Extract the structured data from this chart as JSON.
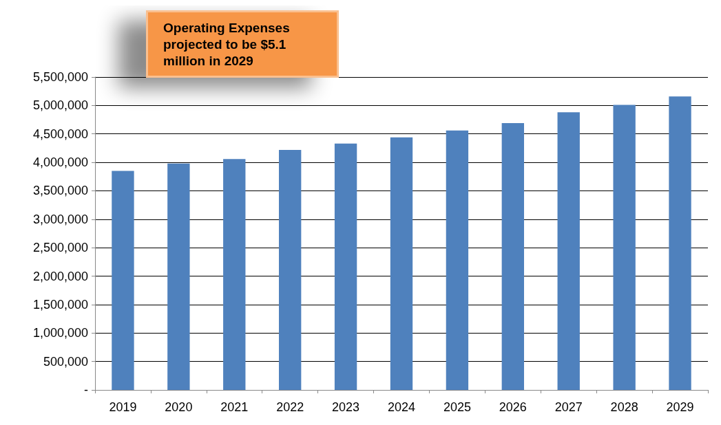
{
  "chart_data": {
    "type": "bar",
    "title": "Operating Expenses projected to be $5.1 million in 2029",
    "categories": [
      "2019",
      "2020",
      "2021",
      "2022",
      "2023",
      "2024",
      "2025",
      "2026",
      "2027",
      "2028",
      "2029"
    ],
    "values": [
      3850000,
      3980000,
      4060000,
      4220000,
      4330000,
      4440000,
      4560000,
      4690000,
      4880000,
      5010000,
      5160000
    ],
    "color": "#4f81bd",
    "ylim": [
      0,
      5500000
    ],
    "yticks": [
      {
        "value": 0,
        "label": "-"
      },
      {
        "value": 500000,
        "label": "500,000"
      },
      {
        "value": 1000000,
        "label": "1,000,000"
      },
      {
        "value": 1500000,
        "label": "1,500,000"
      },
      {
        "value": 2000000,
        "label": "2,000,000"
      },
      {
        "value": 2500000,
        "label": "2,500,000"
      },
      {
        "value": 3000000,
        "label": "3,000,000"
      },
      {
        "value": 3500000,
        "label": "3,500,000"
      },
      {
        "value": 4000000,
        "label": "4,000,000"
      },
      {
        "value": 4500000,
        "label": "4,500,000"
      },
      {
        "value": 5000000,
        "label": "5,000,000"
      },
      {
        "value": 5500000,
        "label": "5,500,000"
      }
    ],
    "grid": "y"
  }
}
